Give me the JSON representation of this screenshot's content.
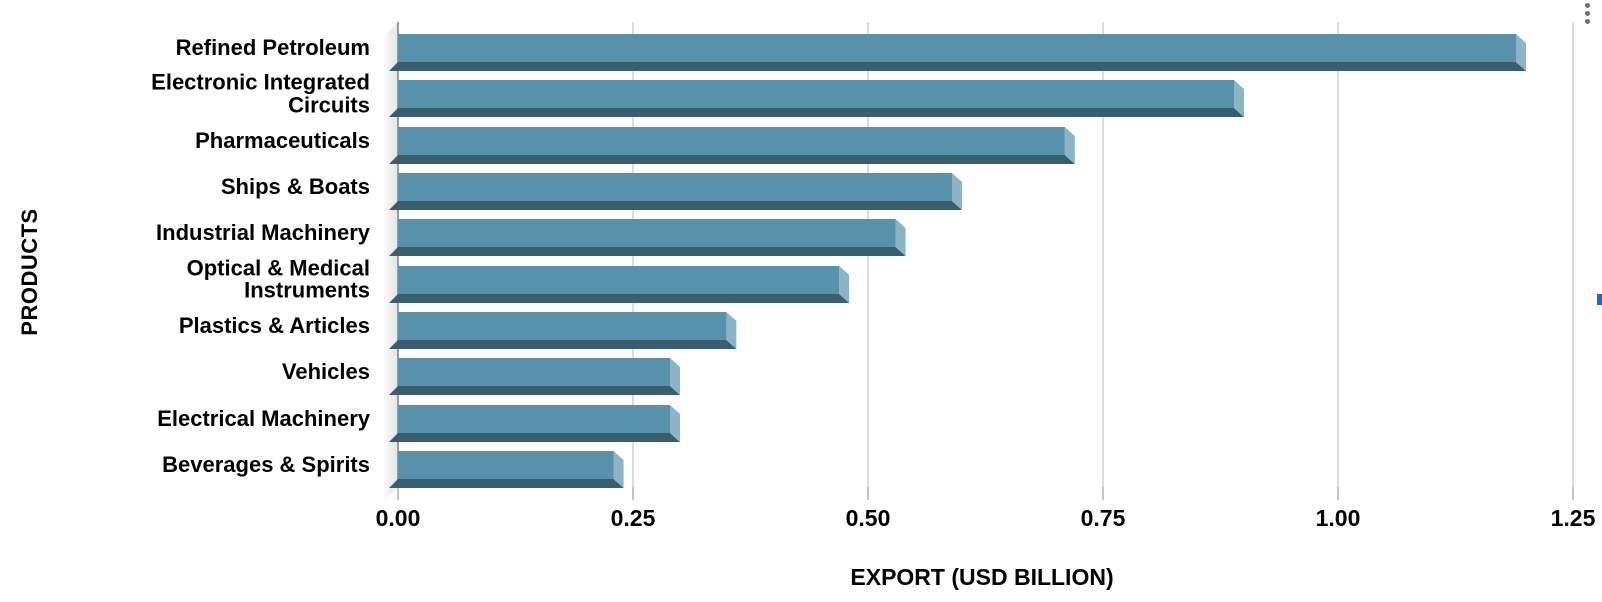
{
  "chart_data": {
    "type": "bar",
    "orientation": "horizontal",
    "style": "3d-bevel",
    "title": "",
    "xlabel": "EXPORT (USD BILLION)",
    "ylabel": "PRODUCTS",
    "categories": [
      "Refined Petroleum",
      "Electronic Integrated Circuits",
      "Pharmaceuticals",
      "Ships & Boats",
      "Industrial Machinery",
      "Optical & Medical Instruments",
      "Plastics & Articles",
      "Vehicles",
      "Electrical Machinery",
      "Beverages & Spirits"
    ],
    "values": [
      1.2,
      0.9,
      0.72,
      0.6,
      0.54,
      0.48,
      0.36,
      0.3,
      0.3,
      0.24
    ],
    "xlim": [
      0,
      1.25
    ],
    "xticks": [
      "0.00",
      "0.25",
      "0.50",
      "0.75",
      "1.00",
      "1.25"
    ],
    "grid": true,
    "legend": "none",
    "colors": {
      "bar_face": "#5891aa",
      "bar_bottom_bevel": "#3a5e6e",
      "bar_right_bevel": "#8cb4c6",
      "gridline": "#dcdcdc",
      "tick": "#c4c4c4",
      "axis_line": "#9c9c9c",
      "text": "#000000"
    }
  },
  "controls": {
    "menu_icon": "kebab-menu",
    "menu_dot_color": "#6a6a6a"
  },
  "artifacts": {
    "right_edge_fragment_color": "#2266d4"
  }
}
